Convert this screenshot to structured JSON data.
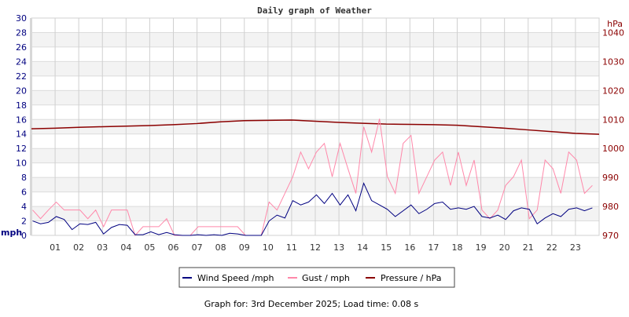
{
  "chart_data": {
    "type": "line",
    "title": "Daily graph of Weather",
    "ylabel": "mph",
    "y2label": "hPa",
    "ylim": [
      0,
      30
    ],
    "y2lim": [
      970,
      1045
    ],
    "xlim": [
      0,
      24
    ],
    "y_ticks": [
      "0",
      "2",
      "4",
      "6",
      "8",
      "10",
      "12",
      "14",
      "16",
      "18",
      "20",
      "22",
      "24",
      "26",
      "28",
      "30"
    ],
    "y2_ticks": [
      "970",
      "980",
      "990",
      "1000",
      "1010",
      "1020",
      "1030",
      "1040"
    ],
    "x_ticks": [
      "01",
      "02",
      "03",
      "04",
      "05",
      "06",
      "07",
      "08",
      "09",
      "10",
      "11",
      "12",
      "13",
      "14",
      "15",
      "16",
      "17",
      "18",
      "19",
      "20",
      "21",
      "22",
      "23"
    ],
    "grid": true,
    "legend_position": "bottom",
    "colors": {
      "wind": "#000080",
      "gust": "#ff88aa",
      "pressure": "#8b0000",
      "left_axis": "#000080",
      "right_axis": "#8b0000"
    },
    "wind_gust_x_hours_step": 0.3333,
    "series": [
      {
        "name": "Wind Speed /mph",
        "axis": "left",
        "values": [
          2.0,
          1.6,
          1.8,
          2.6,
          2.2,
          0.8,
          1.6,
          1.5,
          1.8,
          0.2,
          1.1,
          1.5,
          1.4,
          0.1,
          0.1,
          0.5,
          0.1,
          0.4,
          0.1,
          0.0,
          0.0,
          0.1,
          0.0,
          0.1,
          0.0,
          0.3,
          0.2,
          0.0,
          0.0,
          0.0,
          2.0,
          2.8,
          2.4,
          4.8,
          4.2,
          4.6,
          5.6,
          4.4,
          5.8,
          4.2,
          5.6,
          3.4,
          7.2,
          4.8,
          4.2,
          3.6,
          2.6,
          3.4,
          4.2,
          3.0,
          3.6,
          4.4,
          4.6,
          3.6,
          3.8,
          3.6,
          4.0,
          2.6,
          2.4,
          2.8,
          2.2,
          3.4,
          3.8,
          3.6,
          1.6,
          2.4,
          3.0,
          2.6,
          3.6,
          3.8,
          3.4,
          3.8
        ]
      },
      {
        "name": "Gust / mph",
        "axis": "left",
        "values": [
          3.5,
          2.3,
          3.5,
          4.6,
          3.5,
          3.5,
          3.5,
          2.3,
          3.5,
          1.2,
          3.5,
          3.5,
          3.5,
          0,
          1.2,
          1.2,
          1.2,
          2.3,
          0,
          0,
          0,
          1.2,
          1.2,
          1.2,
          1.2,
          1.2,
          1.2,
          0,
          0,
          0,
          4.6,
          3.5,
          5.8,
          8.1,
          11.5,
          9.2,
          11.5,
          12.7,
          8.1,
          12.7,
          9.2,
          5.8,
          15,
          11.5,
          16.1,
          8.1,
          5.8,
          12.7,
          13.8,
          5.8,
          8.1,
          10.4,
          11.5,
          6.9,
          11.5,
          6.9,
          10.4,
          3.5,
          2.3,
          3.5,
          6.9,
          8.1,
          10.4,
          2.3,
          3.5,
          10.4,
          9.2,
          5.8,
          11.5,
          10.4,
          5.8,
          6.9
        ]
      },
      {
        "name": "Pressure / hPa",
        "axis": "right",
        "x": [
          0,
          1,
          2,
          3,
          4,
          5,
          6,
          7,
          8,
          9,
          10,
          11,
          12,
          13,
          14,
          15,
          16,
          17,
          18,
          19,
          20,
          21,
          22,
          23,
          24
        ],
        "values": [
          1006.8,
          1007.0,
          1007.3,
          1007.5,
          1007.7,
          1007.9,
          1008.2,
          1008.6,
          1009.2,
          1009.6,
          1009.7,
          1009.8,
          1009.4,
          1009.0,
          1008.7,
          1008.4,
          1008.3,
          1008.2,
          1008.0,
          1007.5,
          1007.0,
          1006.4,
          1005.8,
          1005.2,
          1004.9
        ]
      }
    ]
  },
  "legend": {
    "wind": "Wind Speed /mph",
    "gust": "Gust / mph",
    "pressure": "Pressure / hPa"
  },
  "footer": "Graph for: 3rd December 2025; Load time: 0.08 s"
}
